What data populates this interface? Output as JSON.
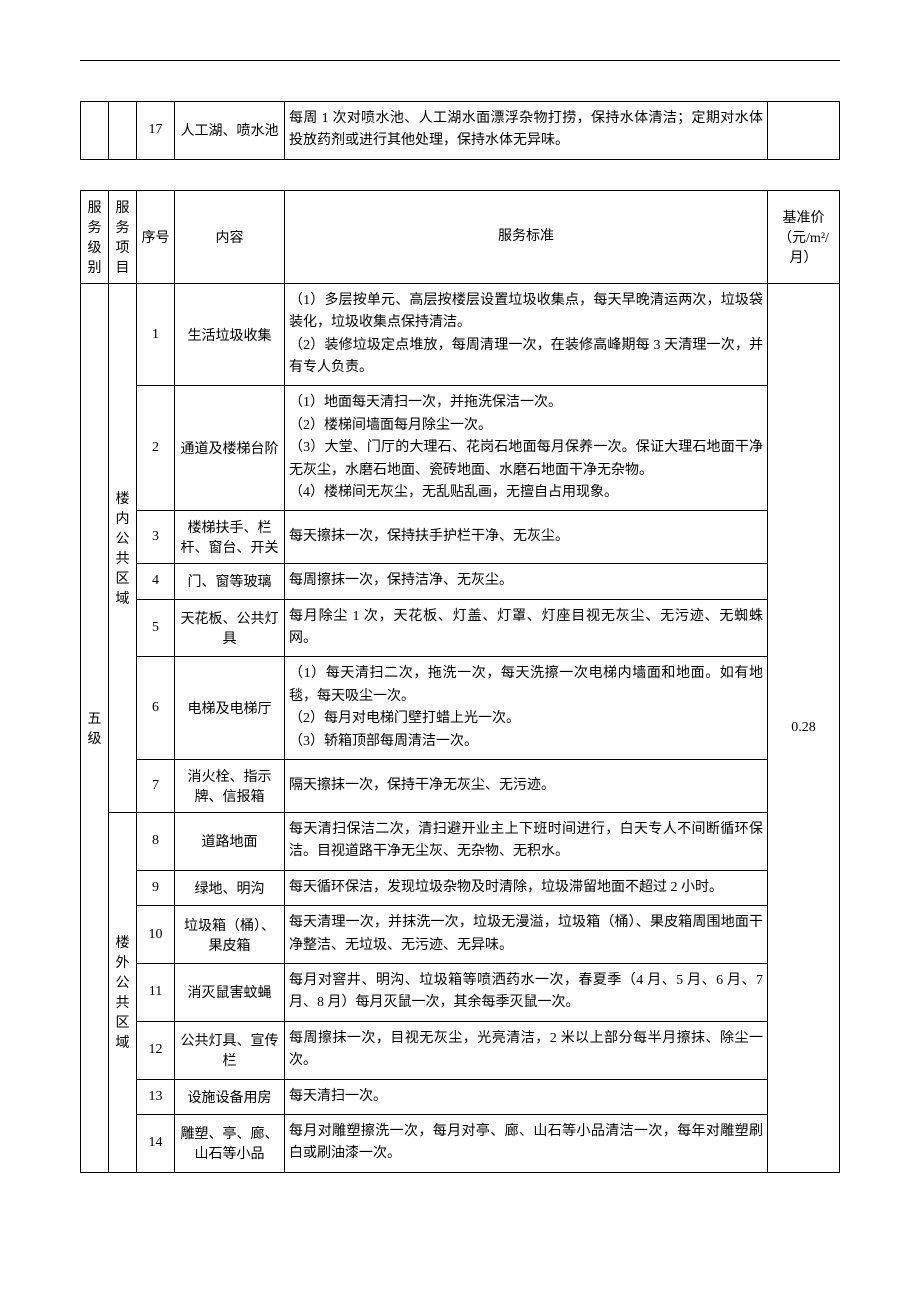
{
  "top_table": {
    "row": {
      "seq": "17",
      "content": "人工湖、喷水池",
      "standard": "每周 1 次对喷水池、人工湖水面漂浮杂物打捞，保持水体清洁；定期对水体投放药剂或进行其他处理，保持水体无异味。"
    }
  },
  "main_table": {
    "headers": {
      "level": "服务级别",
      "item": "服务项目",
      "seq": "序号",
      "content": "内容",
      "standard": "服务标准",
      "price": "基准价（元/m²/月）"
    },
    "level": "五级",
    "price": "0.28",
    "group1": "楼内公共区域",
    "group2": "楼外公共区域",
    "rows": [
      {
        "seq": "1",
        "content": "生活垃圾收集",
        "standard": "（1）多层按单元、高层按楼层设置垃圾收集点，每天早晚清运两次，垃圾袋装化，垃圾收集点保持清洁。\n（2）装修垃圾定点堆放，每周清理一次，在装修高峰期每 3 天清理一次，并有专人负责。"
      },
      {
        "seq": "2",
        "content": "通道及楼梯台阶",
        "standard": "（1）地面每天清扫一次，并拖洗保洁一次。\n（2）楼梯间墙面每月除尘一次。\n（3）大堂、门厅的大理石、花岗石地面每月保养一次。保证大理石地面干净无灰尘，水磨石地面、瓷砖地面、水磨石地面干净无杂物。\n（4）楼梯间无灰尘，无乱贴乱画，无擅自占用现象。"
      },
      {
        "seq": "3",
        "content": "楼梯扶手、栏杆、窗台、开关",
        "standard": "每天擦抹一次，保持扶手护栏干净、无灰尘。"
      },
      {
        "seq": "4",
        "content": "门、窗等玻璃",
        "standard": "每周擦抹一次，保持洁净、无灰尘。"
      },
      {
        "seq": "5",
        "content": "天花板、公共灯具",
        "standard": "每月除尘 1 次，天花板、灯盖、灯罩、灯座目视无灰尘、无污迹、无蜘蛛网。"
      },
      {
        "seq": "6",
        "content": "电梯及电梯厅",
        "standard": "（1）每天清扫二次，拖洗一次，每天洗擦一次电梯内墙面和地面。如有地毯，每天吸尘一次。\n（2）每月对电梯门壁打蜡上光一次。\n（3）轿箱顶部每周清洁一次。"
      },
      {
        "seq": "7",
        "content": "消火栓、指示牌、信报箱",
        "standard": "隔天擦抹一次，保持干净无灰尘、无污迹。"
      },
      {
        "seq": "8",
        "content": "道路地面",
        "standard": "每天清扫保洁二次，清扫避开业主上下班时间进行，白天专人不间断循环保洁。目视道路干净无尘灰、无杂物、无积水。"
      },
      {
        "seq": "9",
        "content": "绿地、明沟",
        "standard": "每天循环保洁，发现垃圾杂物及时清除，垃圾滞留地面不超过 2 小时。"
      },
      {
        "seq": "10",
        "content": "垃圾箱（桶）、果皮箱",
        "standard": "每天清理一次，并抹洗一次，垃圾无漫溢，垃圾箱（桶）、果皮箱周围地面干净整洁、无垃圾、无污迹、无异味。"
      },
      {
        "seq": "11",
        "content": "消灭鼠害蚊蝇",
        "standard": "每月对窨井、明沟、垃圾箱等喷洒药水一次，春夏季（4 月、5 月、6 月、7 月、8 月）每月灭鼠一次，其余每季灭鼠一次。"
      },
      {
        "seq": "12",
        "content": "公共灯具、宣传栏",
        "standard": "每周擦抹一次，目视无灰尘，光亮清洁，2 米以上部分每半月擦抹、除尘一次。"
      },
      {
        "seq": "13",
        "content": "设施设备用房",
        "standard": "每天清扫一次。"
      },
      {
        "seq": "14",
        "content": "雕塑、亭、廊、山石等小品",
        "standard": "每月对雕塑擦洗一次，每月对亭、廊、山石等小品清洁一次，每年对雕塑刷白或刷油漆一次。"
      }
    ]
  }
}
